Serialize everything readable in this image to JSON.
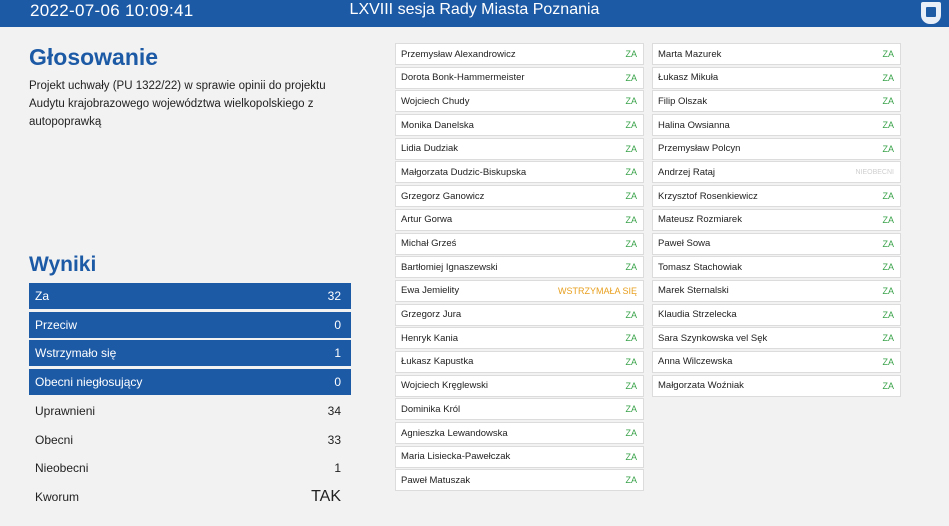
{
  "header": {
    "datetime": "2022-07-06   10:09:41",
    "session": "LXVIII sesja Rady Miasta Poznania",
    "crest_icon": "city-crest-icon"
  },
  "vote": {
    "title": "Głosowanie",
    "description": "Projekt uchwały (PU 1322/22) w sprawie opinii do projektu Audytu krajobrazowego województwa wielkopolskiego z autopoprawką"
  },
  "results": {
    "title": "Wyniki",
    "rows": [
      {
        "label": "Za",
        "value": "32",
        "style": "blue"
      },
      {
        "label": "Przeciw",
        "value": "0",
        "style": "blue"
      },
      {
        "label": "Wstrzymało się",
        "value": "1",
        "style": "blue"
      },
      {
        "label": "Obecni niegłosujący",
        "value": "0",
        "style": "blue"
      },
      {
        "label": "Uprawnieni",
        "value": "34",
        "style": "plain"
      },
      {
        "label": "Obecni",
        "value": "33",
        "style": "plain"
      },
      {
        "label": "Nieobecni",
        "value": "1",
        "style": "plain"
      },
      {
        "label": "Kworum",
        "value": "TAK",
        "style": "plain"
      }
    ]
  },
  "colors": {
    "accent": "#1d5aa6",
    "za": "#3aa34a",
    "abstain": "#e8a020",
    "absent": "#cfcfcf"
  },
  "councillors": {
    "column1": [
      {
        "name": "Przemysław Alexandrowicz",
        "status": "ZA"
      },
      {
        "name": "Dorota Bonk-Hammermeister",
        "status": "ZA"
      },
      {
        "name": "Wojciech Chudy",
        "status": "ZA"
      },
      {
        "name": "Monika Danelska",
        "status": "ZA"
      },
      {
        "name": "Lidia Dudziak",
        "status": "ZA"
      },
      {
        "name": "Małgorzata Dudzic-Biskupska",
        "status": "ZA"
      },
      {
        "name": "Grzegorz Ganowicz",
        "status": "ZA"
      },
      {
        "name": "Artur Gorwa",
        "status": "ZA"
      },
      {
        "name": "Michał Grześ",
        "status": "ZA"
      },
      {
        "name": "Bartłomiej Ignaszewski",
        "status": "ZA"
      },
      {
        "name": "Ewa Jemielity",
        "status": "WSTRZYMAŁA SIĘ"
      },
      {
        "name": "Grzegorz Jura",
        "status": "ZA"
      },
      {
        "name": "Henryk Kania",
        "status": "ZA"
      },
      {
        "name": "Łukasz Kapustka",
        "status": "ZA"
      },
      {
        "name": "Wojciech Kręglewski",
        "status": "ZA"
      },
      {
        "name": "Dominika Król",
        "status": "ZA"
      },
      {
        "name": "Agnieszka Lewandowska",
        "status": "ZA"
      },
      {
        "name": "Maria Lisiecka-Pawełczak",
        "status": "ZA"
      },
      {
        "name": "Paweł Matuszak",
        "status": "ZA"
      }
    ],
    "column2": [
      {
        "name": "Marta Mazurek",
        "status": "ZA"
      },
      {
        "name": "Łukasz Mikuła",
        "status": "ZA"
      },
      {
        "name": "Filip Olszak",
        "status": "ZA"
      },
      {
        "name": "Halina Owsianna",
        "status": "ZA"
      },
      {
        "name": "Przemysław Polcyn",
        "status": "ZA"
      },
      {
        "name": "Andrzej Rataj",
        "status": "NIEOBECNI"
      },
      {
        "name": "Krzysztof Rosenkiewicz",
        "status": "ZA"
      },
      {
        "name": "Mateusz Rozmiarek",
        "status": "ZA"
      },
      {
        "name": "Paweł Sowa",
        "status": "ZA"
      },
      {
        "name": "Tomasz Stachowiak",
        "status": "ZA"
      },
      {
        "name": "Marek Sternalski",
        "status": "ZA"
      },
      {
        "name": "Klaudia Strzelecka",
        "status": "ZA"
      },
      {
        "name": "Sara Szynkowska vel Sęk",
        "status": "ZA"
      },
      {
        "name": "Anna Wilczewska",
        "status": "ZA"
      },
      {
        "name": "Małgorzata Woźniak",
        "status": "ZA"
      }
    ]
  }
}
